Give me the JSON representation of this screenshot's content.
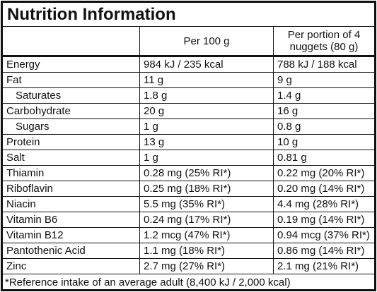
{
  "title": "Nutrition Information",
  "header": [
    "Per 100 g",
    "Per portion of 4 nuggets (80 g)"
  ],
  "rows": [
    [
      "Energy",
      "984 kJ / 235 kcal",
      "788 kJ / 188 kcal"
    ],
    [
      "Fat",
      "11 g",
      "9 g"
    ],
    [
      "Saturates",
      "1.8 g",
      "1.4 g"
    ],
    [
      "Carbohydrate",
      "20 g",
      "16 g"
    ],
    [
      "Sugars",
      "1 g",
      "0.8 g"
    ],
    [
      "Protein",
      "13 g",
      "10 g"
    ],
    [
      "Salt",
      "1 g",
      "0.81 g"
    ],
    [
      "Thiamin",
      "0.28 mg (25% RI*)",
      "0.22 mg (20% RI*)"
    ],
    [
      "Riboflavin",
      "0.25 mg (18% RI*)",
      "0.20 mg (14% RI*)"
    ],
    [
      "Niacin",
      "5.5 mg (35% RI*)",
      "4.4 mg (28% RI*)"
    ],
    [
      "Vitamin B6",
      "0.24 mg (17% RI*)",
      "0.19 mg (14% RI*)"
    ],
    [
      "Vitamin B12",
      "1.2 mcg (47% RI*)",
      "0.94 mcg (37% RI*)"
    ],
    [
      "Pantothenic Acid",
      "1.1 mg (18% RI*)",
      "0.86 mg (14% RI*)"
    ],
    [
      "Zinc",
      "2.7 mg (27% RI*)",
      "2.1 mg (21% RI*)"
    ]
  ],
  "footnote": "*Reference intake of an average adult (8,400 kJ / 2,000 kcal)"
}
